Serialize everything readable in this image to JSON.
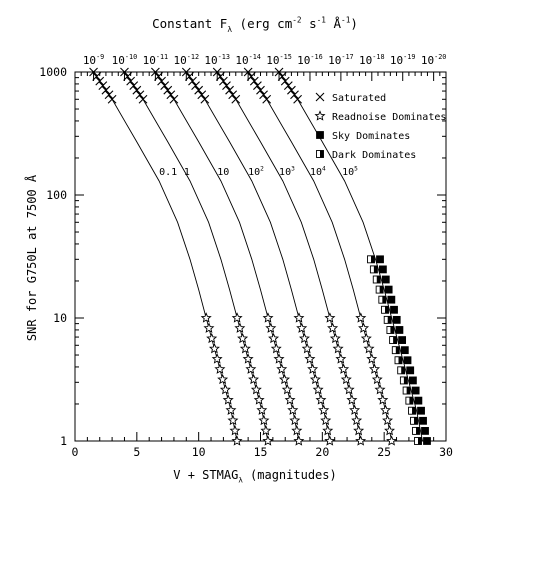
{
  "chart_data": {
    "type": "line",
    "title": "Constant F_λ (erg cm^-2 s^-1 Å^-1)",
    "xlabel": "V + STMAG_λ (magnitudes)",
    "ylabel": "SNR for G750L at 7500 Å",
    "xlim": [
      0,
      30
    ],
    "ylim": [
      1,
      1000
    ],
    "yscale": "log",
    "x_ticks": [
      0,
      5,
      10,
      15,
      20,
      25,
      30
    ],
    "y_ticks": [
      1,
      10,
      100,
      1000
    ],
    "x_ticklabels": [
      "0",
      "5",
      "10",
      "15",
      "20",
      "25",
      "30"
    ],
    "y_ticklabels": [
      "1",
      "10",
      "100",
      "1000"
    ],
    "top_axis": {
      "exponents": [
        "-9",
        "-10",
        "-11",
        "-12",
        "-13",
        "-14",
        "-15",
        "-16",
        "-17",
        "-18",
        "-19",
        "-20"
      ],
      "positions": [
        1.5,
        4.0,
        6.5,
        9.0,
        11.5,
        14.0,
        16.5,
        19.0,
        21.5,
        24.0,
        26.5,
        29.0
      ]
    },
    "series": [
      {
        "name": "0.1",
        "x": [
          1.5,
          3.0,
          5.0,
          6.8,
          8.3,
          9.3,
          10.0,
          10.5,
          11.2,
          12.0,
          12.6,
          13.1
        ],
        "y": [
          1000,
          600,
          270,
          130,
          60,
          30,
          17,
          11,
          6,
          3,
          1.8,
          1
        ]
      },
      {
        "name": "1",
        "x": [
          4.0,
          5.5,
          7.5,
          9.3,
          10.8,
          11.8,
          12.5,
          13.0,
          13.7,
          14.5,
          15.1,
          15.6
        ],
        "y": [
          1000,
          600,
          270,
          130,
          60,
          30,
          17,
          11,
          6,
          3,
          1.8,
          1
        ]
      },
      {
        "name": "10",
        "x": [
          6.5,
          8.0,
          10.0,
          11.8,
          13.3,
          14.3,
          15.0,
          15.5,
          16.2,
          17.0,
          17.6,
          18.1
        ],
        "y": [
          1000,
          600,
          270,
          130,
          60,
          30,
          17,
          11,
          6,
          3,
          1.8,
          1
        ]
      },
      {
        "name": "10^2",
        "x": [
          9.0,
          10.5,
          12.5,
          14.3,
          15.8,
          16.8,
          17.5,
          18.0,
          18.7,
          19.5,
          20.1,
          20.6
        ],
        "y": [
          1000,
          600,
          270,
          130,
          60,
          30,
          17,
          11,
          6,
          3,
          1.8,
          1
        ]
      },
      {
        "name": "10^3",
        "x": [
          11.5,
          13.0,
          15.0,
          16.8,
          18.3,
          19.3,
          20.0,
          20.5,
          21.2,
          22.0,
          22.6,
          23.1
        ],
        "y": [
          1000,
          600,
          270,
          130,
          60,
          30,
          17,
          11,
          6,
          3,
          1.8,
          1
        ]
      },
      {
        "name": "10^4",
        "x": [
          14.0,
          15.5,
          17.5,
          19.3,
          20.8,
          21.8,
          22.5,
          23.0,
          23.7,
          24.5,
          25.1,
          25.6
        ],
        "y": [
          1000,
          600,
          270,
          130,
          60,
          30,
          17,
          11,
          6,
          3,
          1.8,
          1
        ]
      },
      {
        "name": "10^5",
        "x": [
          16.5,
          18.0,
          20.0,
          21.8,
          23.3,
          24.3,
          25.0,
          25.5,
          26.2,
          27.0,
          27.6,
          28.1
        ],
        "y": [
          1000,
          600,
          270,
          130,
          60,
          30,
          17,
          11,
          6,
          3,
          1.8,
          1
        ]
      }
    ],
    "curve_labels": [
      {
        "text": "0.1",
        "x": 6.8,
        "y": 130
      },
      {
        "text": "1",
        "x": 8.8,
        "y": 130
      },
      {
        "text": "10",
        "x": 11.5,
        "y": 130
      },
      {
        "text": "10^2",
        "x": 14.0,
        "y": 130
      },
      {
        "text": "10^3",
        "x": 16.5,
        "y": 130
      },
      {
        "text": "10^4",
        "x": 19.0,
        "y": 130
      },
      {
        "text": "10^5",
        "x": 21.6,
        "y": 130
      }
    ],
    "marker_regimes": {
      "saturated": {
        "ymin": 600,
        "ymax": 1000
      },
      "readnoise": {
        "curves": [
          0,
          1,
          2,
          3,
          4,
          5
        ],
        "ymin": 1,
        "ymax": 10
      },
      "sky_dark": {
        "curves": [
          6
        ],
        "ymin": 1,
        "ymax": 30
      }
    },
    "legend": {
      "placement": "top-right",
      "entries": [
        {
          "label": "Saturated",
          "marker": "x"
        },
        {
          "label": "Readnoise Dominates",
          "marker": "star"
        },
        {
          "label": "Sky Dominates",
          "marker": "filled-square"
        },
        {
          "label": "Dark Dominates",
          "marker": "half-square"
        }
      ]
    },
    "grid": false
  }
}
